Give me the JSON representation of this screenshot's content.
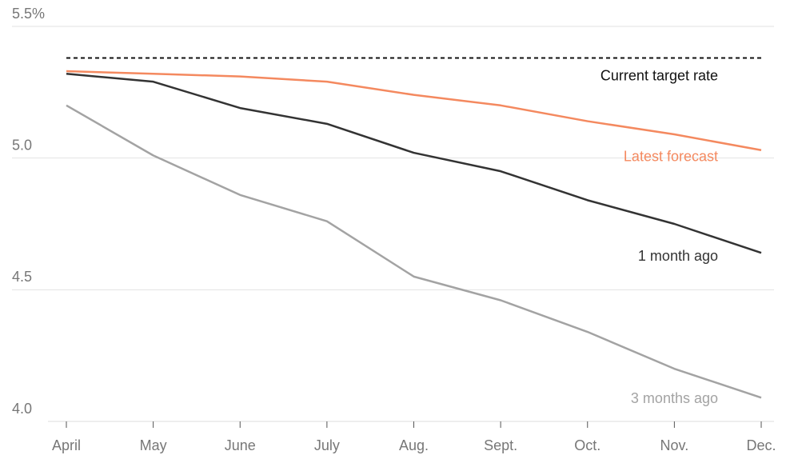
{
  "chart_data": {
    "type": "line",
    "categories": [
      "April",
      "May",
      "June",
      "July",
      "Aug.",
      "Sept.",
      "Oct.",
      "Nov.",
      "Dec."
    ],
    "series": [
      {
        "name": "Latest forecast",
        "color": "#f4895f",
        "values": [
          5.33,
          5.32,
          5.31,
          5.29,
          5.24,
          5.2,
          5.14,
          5.09,
          5.03
        ]
      },
      {
        "name": "1 month ago",
        "color": "#333333",
        "values": [
          5.32,
          5.29,
          5.19,
          5.13,
          5.02,
          4.95,
          4.84,
          4.75,
          4.64
        ]
      },
      {
        "name": "3 months ago",
        "color": "#a3a3a3",
        "values": [
          5.2,
          5.01,
          4.86,
          4.76,
          4.55,
          4.46,
          4.34,
          4.2,
          4.09
        ]
      }
    ],
    "reference_line": {
      "label": "Current target rate",
      "value": 5.38,
      "color": "#111111"
    },
    "ylim": [
      4.0,
      5.5
    ],
    "yticks": [
      {
        "value": 4,
        "label": "4.0"
      },
      4.5,
      {
        "value": 5,
        "label": "5.0"
      },
      {
        "value": 5.5,
        "label": "5.5%"
      }
    ],
    "grid": true
  }
}
